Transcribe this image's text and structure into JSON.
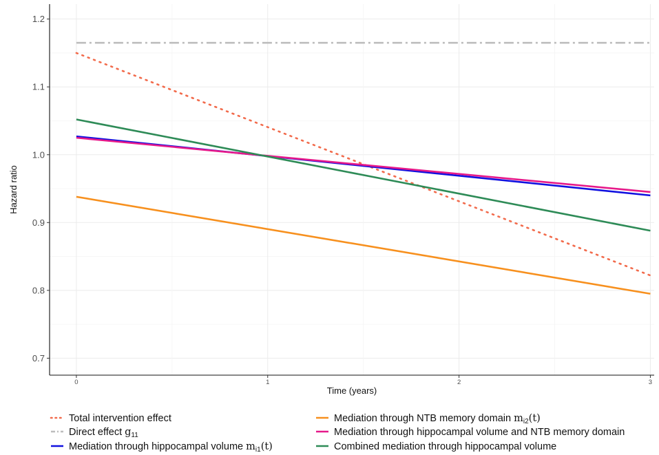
{
  "chart_data": {
    "type": "line",
    "title": "",
    "xlabel": "Time (years)",
    "ylabel": "Hazard ratio",
    "xlim": [
      -0.14,
      3.02
    ],
    "ylim": [
      0.675,
      1.222
    ],
    "x_ticks": [
      0,
      1,
      2,
      3
    ],
    "x_tick_labels": [
      "0",
      "1",
      "2",
      "3"
    ],
    "y_ticks": [
      0.7,
      0.8,
      0.9,
      1.0,
      1.1,
      1.2
    ],
    "y_tick_labels": [
      "0.7",
      "0.8",
      "0.9",
      "1.0",
      "1.1",
      "1.2"
    ],
    "grid": true,
    "legend_position": "bottom",
    "series": [
      {
        "key": "total",
        "name": "Total intervention effect",
        "color": "#f26b4c",
        "dash": "dotted",
        "x": [
          0,
          3
        ],
        "y": [
          1.15,
          0.822
        ]
      },
      {
        "key": "direct",
        "name": "Direct effect",
        "name_math": "g",
        "name_math_sub": "11",
        "color": "#bdbdbd",
        "dash": "dashdot",
        "x": [
          0,
          3
        ],
        "y": [
          1.165,
          1.165
        ]
      },
      {
        "key": "hippo",
        "name": "Mediation through hippocampal volume",
        "name_math": "m",
        "name_math_sub": "i1",
        "name_math_suffix": "(t)",
        "color": "#1010e0",
        "dash": "solid",
        "x": [
          0,
          3
        ],
        "y": [
          1.027,
          0.94
        ]
      },
      {
        "key": "ntb",
        "name": "Mediation through NTB memory domain",
        "name_math": "m",
        "name_math_sub": "i2",
        "name_math_suffix": "(t)",
        "color": "#f7901e",
        "dash": "solid",
        "x": [
          0,
          3
        ],
        "y": [
          0.938,
          0.795
        ]
      },
      {
        "key": "both",
        "name": "Mediation through hippocampal volume and NTB memory domain",
        "color": "#e6198a",
        "dash": "solid",
        "x": [
          0,
          3
        ],
        "y": [
          1.025,
          0.945
        ]
      },
      {
        "key": "combined",
        "name": "Combined mediation through hippocampal volume",
        "color": "#2e8b57",
        "dash": "solid",
        "x": [
          0,
          3
        ],
        "y": [
          1.052,
          0.888
        ]
      }
    ]
  }
}
